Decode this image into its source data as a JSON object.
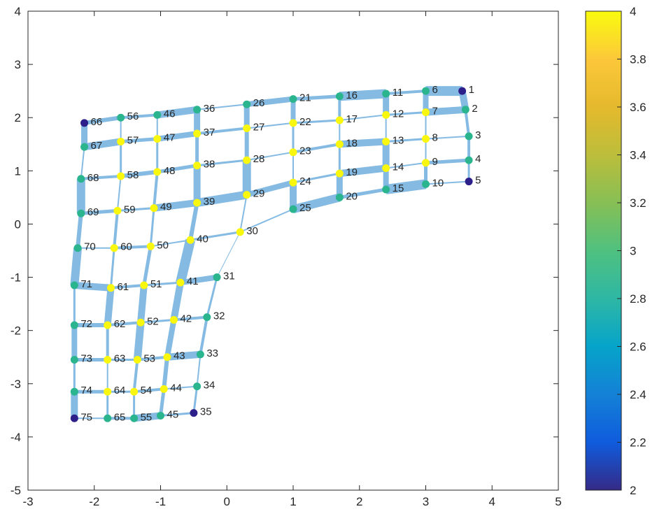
{
  "chart_data": {
    "type": "graph",
    "xlim": [
      -3,
      5
    ],
    "ylim": [
      -5,
      4
    ],
    "x_ticks": [
      -3,
      -2,
      -1,
      0,
      1,
      2,
      3,
      4,
      5
    ],
    "y_ticks": [
      -5,
      -4,
      -3,
      -2,
      -1,
      0,
      1,
      2,
      3,
      4
    ],
    "colorbar": {
      "lim": [
        2,
        4
      ],
      "ticks": [
        2,
        2.2,
        2.4,
        2.6,
        2.8,
        3,
        3.2,
        3.4,
        3.6,
        3.8,
        4
      ],
      "colormap": "parula"
    },
    "edge_color": "#78b4e0",
    "node_colors": {
      "2": "#2d1f8a",
      "3": "#2ab58e",
      "4": "#f9f70e"
    },
    "nodes": [
      {
        "id": "1",
        "x": 3.55,
        "y": 2.5,
        "degree": 2
      },
      {
        "id": "2",
        "x": 3.6,
        "y": 2.15,
        "degree": 3
      },
      {
        "id": "3",
        "x": 3.65,
        "y": 1.65,
        "degree": 3
      },
      {
        "id": "4",
        "x": 3.65,
        "y": 1.2,
        "degree": 3
      },
      {
        "id": "5",
        "x": 3.65,
        "y": 0.8,
        "degree": 2
      },
      {
        "id": "6",
        "x": 3.0,
        "y": 2.5,
        "degree": 3
      },
      {
        "id": "7",
        "x": 3.0,
        "y": 2.1,
        "degree": 4
      },
      {
        "id": "8",
        "x": 3.0,
        "y": 1.6,
        "degree": 4
      },
      {
        "id": "9",
        "x": 3.0,
        "y": 1.15,
        "degree": 4
      },
      {
        "id": "10",
        "x": 3.0,
        "y": 0.75,
        "degree": 3
      },
      {
        "id": "11",
        "x": 2.4,
        "y": 2.45,
        "degree": 3
      },
      {
        "id": "12",
        "x": 2.4,
        "y": 2.05,
        "degree": 4
      },
      {
        "id": "13",
        "x": 2.4,
        "y": 1.55,
        "degree": 4
      },
      {
        "id": "14",
        "x": 2.4,
        "y": 1.05,
        "degree": 4
      },
      {
        "id": "15",
        "x": 2.4,
        "y": 0.65,
        "degree": 3
      },
      {
        "id": "16",
        "x": 1.7,
        "y": 2.4,
        "degree": 3
      },
      {
        "id": "17",
        "x": 1.7,
        "y": 1.95,
        "degree": 4
      },
      {
        "id": "18",
        "x": 1.7,
        "y": 1.5,
        "degree": 4
      },
      {
        "id": "19",
        "x": 1.7,
        "y": 0.95,
        "degree": 4
      },
      {
        "id": "20",
        "x": 1.7,
        "y": 0.5,
        "degree": 3
      },
      {
        "id": "21",
        "x": 1.0,
        "y": 2.35,
        "degree": 3
      },
      {
        "id": "22",
        "x": 1.0,
        "y": 1.9,
        "degree": 4
      },
      {
        "id": "23",
        "x": 1.0,
        "y": 1.35,
        "degree": 4
      },
      {
        "id": "24",
        "x": 1.0,
        "y": 0.78,
        "degree": 4
      },
      {
        "id": "25",
        "x": 1.0,
        "y": 0.28,
        "degree": 3
      },
      {
        "id": "26",
        "x": 0.3,
        "y": 2.25,
        "degree": 3
      },
      {
        "id": "27",
        "x": 0.3,
        "y": 1.8,
        "degree": 4
      },
      {
        "id": "28",
        "x": 0.3,
        "y": 1.2,
        "degree": 4
      },
      {
        "id": "29",
        "x": 0.3,
        "y": 0.55,
        "degree": 4
      },
      {
        "id": "30",
        "x": 0.2,
        "y": -0.15,
        "degree": 4
      },
      {
        "id": "31",
        "x": -0.15,
        "y": -1.0,
        "degree": 3
      },
      {
        "id": "32",
        "x": -0.3,
        "y": -1.75,
        "degree": 3
      },
      {
        "id": "33",
        "x": -0.4,
        "y": -2.45,
        "degree": 3
      },
      {
        "id": "34",
        "x": -0.45,
        "y": -3.05,
        "degree": 3
      },
      {
        "id": "35",
        "x": -0.5,
        "y": -3.55,
        "degree": 2
      },
      {
        "id": "36",
        "x": -0.45,
        "y": 2.15,
        "degree": 3
      },
      {
        "id": "37",
        "x": -0.45,
        "y": 1.7,
        "degree": 4
      },
      {
        "id": "38",
        "x": -0.45,
        "y": 1.1,
        "degree": 4
      },
      {
        "id": "39",
        "x": -0.45,
        "y": 0.4,
        "degree": 4
      },
      {
        "id": "40",
        "x": -0.55,
        "y": -0.3,
        "degree": 4
      },
      {
        "id": "41",
        "x": -0.7,
        "y": -1.1,
        "degree": 4
      },
      {
        "id": "42",
        "x": -0.8,
        "y": -1.8,
        "degree": 4
      },
      {
        "id": "43",
        "x": -0.9,
        "y": -2.5,
        "degree": 4
      },
      {
        "id": "44",
        "x": -0.95,
        "y": -3.1,
        "degree": 4
      },
      {
        "id": "45",
        "x": -1.0,
        "y": -3.6,
        "degree": 3
      },
      {
        "id": "46",
        "x": -1.05,
        "y": 2.05,
        "degree": 3
      },
      {
        "id": "47",
        "x": -1.05,
        "y": 1.6,
        "degree": 4
      },
      {
        "id": "48",
        "x": -1.05,
        "y": 0.98,
        "degree": 4
      },
      {
        "id": "49",
        "x": -1.1,
        "y": 0.3,
        "degree": 4
      },
      {
        "id": "50",
        "x": -1.15,
        "y": -0.42,
        "degree": 4
      },
      {
        "id": "51",
        "x": -1.25,
        "y": -1.15,
        "degree": 4
      },
      {
        "id": "52",
        "x": -1.3,
        "y": -1.85,
        "degree": 4
      },
      {
        "id": "53",
        "x": -1.35,
        "y": -2.55,
        "degree": 4
      },
      {
        "id": "54",
        "x": -1.4,
        "y": -3.15,
        "degree": 4
      },
      {
        "id": "55",
        "x": -1.4,
        "y": -3.65,
        "degree": 3
      },
      {
        "id": "56",
        "x": -1.6,
        "y": 2.0,
        "degree": 3
      },
      {
        "id": "57",
        "x": -1.6,
        "y": 1.55,
        "degree": 4
      },
      {
        "id": "58",
        "x": -1.6,
        "y": 0.9,
        "degree": 4
      },
      {
        "id": "59",
        "x": -1.65,
        "y": 0.25,
        "degree": 4
      },
      {
        "id": "60",
        "x": -1.7,
        "y": -0.45,
        "degree": 4
      },
      {
        "id": "61",
        "x": -1.75,
        "y": -1.2,
        "degree": 4
      },
      {
        "id": "62",
        "x": -1.8,
        "y": -1.9,
        "degree": 4
      },
      {
        "id": "63",
        "x": -1.8,
        "y": -2.55,
        "degree": 4
      },
      {
        "id": "64",
        "x": -1.8,
        "y": -3.15,
        "degree": 4
      },
      {
        "id": "65",
        "x": -1.8,
        "y": -3.65,
        "degree": 3
      },
      {
        "id": "66",
        "x": -2.15,
        "y": 1.9,
        "degree": 2
      },
      {
        "id": "67",
        "x": -2.15,
        "y": 1.45,
        "degree": 3
      },
      {
        "id": "68",
        "x": -2.2,
        "y": 0.85,
        "degree": 3
      },
      {
        "id": "69",
        "x": -2.2,
        "y": 0.2,
        "degree": 3
      },
      {
        "id": "70",
        "x": -2.25,
        "y": -0.45,
        "degree": 3
      },
      {
        "id": "71",
        "x": -2.3,
        "y": -1.15,
        "degree": 3
      },
      {
        "id": "72",
        "x": -2.3,
        "y": -1.9,
        "degree": 3
      },
      {
        "id": "73",
        "x": -2.3,
        "y": -2.55,
        "degree": 3
      },
      {
        "id": "74",
        "x": -2.3,
        "y": -3.15,
        "degree": 3
      },
      {
        "id": "75",
        "x": -2.3,
        "y": -3.65,
        "degree": 2
      }
    ],
    "edges": [
      [
        1,
        2,
        10
      ],
      [
        2,
        3,
        4
      ],
      [
        3,
        4,
        4
      ],
      [
        4,
        5,
        3
      ],
      [
        6,
        7,
        8
      ],
      [
        7,
        8,
        2
      ],
      [
        8,
        9,
        2
      ],
      [
        9,
        10,
        5
      ],
      [
        11,
        12,
        9
      ],
      [
        12,
        13,
        2
      ],
      [
        13,
        14,
        10
      ],
      [
        14,
        15,
        8
      ],
      [
        16,
        17,
        4
      ],
      [
        17,
        18,
        2
      ],
      [
        18,
        19,
        3
      ],
      [
        19,
        20,
        9
      ],
      [
        21,
        22,
        7
      ],
      [
        22,
        23,
        3
      ],
      [
        23,
        24,
        2
      ],
      [
        24,
        25,
        10
      ],
      [
        26,
        27,
        8
      ],
      [
        27,
        28,
        6
      ],
      [
        28,
        29,
        12
      ],
      [
        29,
        30,
        2
      ],
      [
        30,
        31,
        1
      ],
      [
        31,
        32,
        3
      ],
      [
        32,
        33,
        4
      ],
      [
        33,
        34,
        2
      ],
      [
        34,
        35,
        3
      ],
      [
        36,
        37,
        9
      ],
      [
        37,
        38,
        5
      ],
      [
        38,
        39,
        10
      ],
      [
        39,
        40,
        6
      ],
      [
        40,
        41,
        14
      ],
      [
        41,
        42,
        10
      ],
      [
        42,
        43,
        8
      ],
      [
        43,
        44,
        6
      ],
      [
        44,
        45,
        5
      ],
      [
        46,
        47,
        2
      ],
      [
        47,
        48,
        3
      ],
      [
        48,
        49,
        4
      ],
      [
        49,
        50,
        3
      ],
      [
        50,
        51,
        5
      ],
      [
        51,
        52,
        10
      ],
      [
        52,
        53,
        11
      ],
      [
        53,
        54,
        4
      ],
      [
        54,
        55,
        3
      ],
      [
        56,
        57,
        2
      ],
      [
        57,
        58,
        3
      ],
      [
        58,
        59,
        2
      ],
      [
        59,
        60,
        4
      ],
      [
        60,
        61,
        3
      ],
      [
        61,
        62,
        10
      ],
      [
        62,
        63,
        4
      ],
      [
        63,
        64,
        2
      ],
      [
        64,
        65,
        3
      ],
      [
        66,
        67,
        9
      ],
      [
        67,
        68,
        2
      ],
      [
        68,
        69,
        12
      ],
      [
        69,
        70,
        6
      ],
      [
        70,
        71,
        12
      ],
      [
        71,
        72,
        3
      ],
      [
        72,
        73,
        8
      ],
      [
        73,
        74,
        3
      ],
      [
        74,
        75,
        10
      ],
      [
        1,
        6,
        14
      ],
      [
        6,
        11,
        4
      ],
      [
        11,
        16,
        13
      ],
      [
        16,
        21,
        5
      ],
      [
        21,
        26,
        8
      ],
      [
        26,
        36,
        2
      ],
      [
        36,
        46,
        10
      ],
      [
        46,
        56,
        4
      ],
      [
        56,
        66,
        6
      ],
      [
        2,
        7,
        10
      ],
      [
        7,
        12,
        3
      ],
      [
        12,
        17,
        2
      ],
      [
        17,
        22,
        3
      ],
      [
        22,
        27,
        2
      ],
      [
        27,
        37,
        4
      ],
      [
        37,
        47,
        8
      ],
      [
        47,
        57,
        5
      ],
      [
        57,
        67,
        10
      ],
      [
        3,
        8,
        2
      ],
      [
        8,
        13,
        3
      ],
      [
        13,
        18,
        10
      ],
      [
        18,
        23,
        4
      ],
      [
        23,
        28,
        2
      ],
      [
        28,
        38,
        3
      ],
      [
        38,
        48,
        5
      ],
      [
        48,
        58,
        6
      ],
      [
        58,
        68,
        4
      ],
      [
        4,
        9,
        5
      ],
      [
        9,
        14,
        2
      ],
      [
        14,
        19,
        10
      ],
      [
        19,
        24,
        3
      ],
      [
        24,
        29,
        8
      ],
      [
        29,
        39,
        12
      ],
      [
        39,
        49,
        10
      ],
      [
        49,
        59,
        3
      ],
      [
        59,
        69,
        5
      ],
      [
        5,
        10,
        2
      ],
      [
        10,
        15,
        14
      ],
      [
        15,
        20,
        5
      ],
      [
        20,
        25,
        12
      ],
      [
        25,
        30,
        2
      ],
      [
        30,
        40,
        3
      ],
      [
        40,
        50,
        2
      ],
      [
        50,
        60,
        4
      ],
      [
        60,
        70,
        2
      ],
      [
        31,
        41,
        8
      ],
      [
        41,
        51,
        3
      ],
      [
        51,
        61,
        4
      ],
      [
        61,
        71,
        10
      ],
      [
        32,
        42,
        4
      ],
      [
        42,
        52,
        3
      ],
      [
        52,
        62,
        4
      ],
      [
        62,
        72,
        6
      ],
      [
        33,
        43,
        10
      ],
      [
        43,
        53,
        4
      ],
      [
        53,
        63,
        3
      ],
      [
        63,
        73,
        5
      ],
      [
        34,
        44,
        2
      ],
      [
        44,
        54,
        4
      ],
      [
        54,
        64,
        3
      ],
      [
        64,
        74,
        5
      ],
      [
        35,
        45,
        3
      ],
      [
        45,
        55,
        10
      ],
      [
        55,
        65,
        4
      ],
      [
        65,
        75,
        2
      ]
    ]
  }
}
